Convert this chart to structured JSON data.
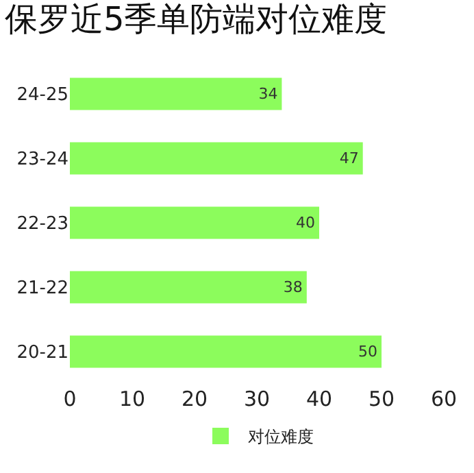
{
  "chart_data": {
    "type": "bar",
    "orientation": "horizontal",
    "title": "保罗近5季单防端对位难度",
    "categories": [
      "24-25",
      "23-24",
      "22-23",
      "21-22",
      "20-21"
    ],
    "series": [
      {
        "name": "对位难度",
        "color": "#8cfc5c",
        "values": [
          34,
          47,
          40,
          38,
          50
        ]
      }
    ],
    "xlim": [
      0,
      60
    ],
    "xticks": [
      0,
      10,
      20,
      30,
      40,
      50,
      60
    ],
    "grid": false,
    "legend": "bottom",
    "data_labels": true
  }
}
